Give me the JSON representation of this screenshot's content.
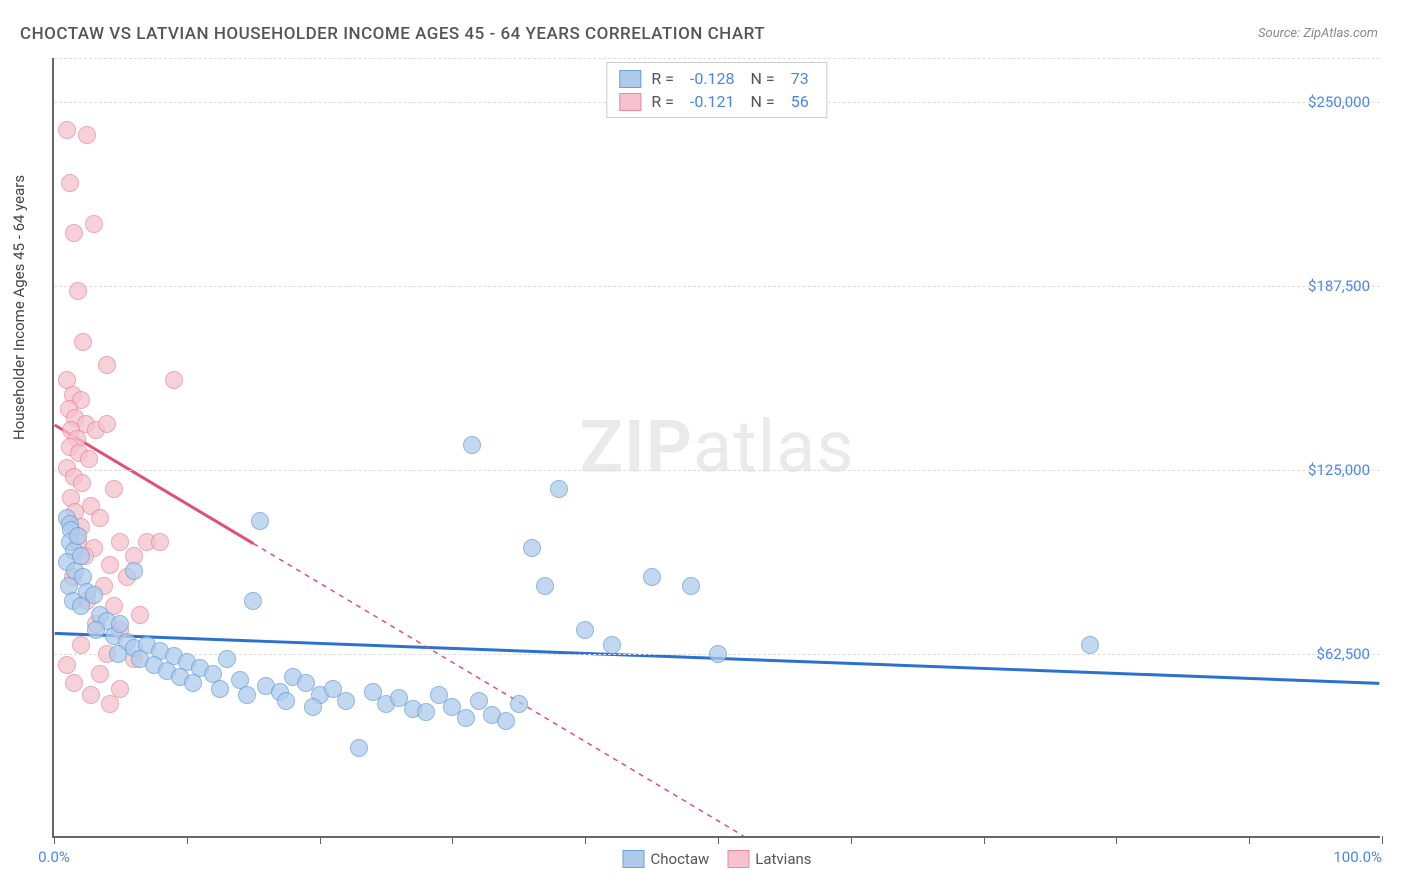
{
  "title": "CHOCTAW VS LATVIAN HOUSEHOLDER INCOME AGES 45 - 64 YEARS CORRELATION CHART",
  "source": "Source: ZipAtlas.com",
  "ylabel": "Householder Income Ages 45 - 64 years",
  "watermark_zip": "ZIP",
  "watermark_atlas": "atlas",
  "chart": {
    "type": "scatter",
    "xlim": [
      0,
      100
    ],
    "ylim": [
      0,
      265000
    ],
    "background_color": "#ffffff",
    "grid_color": "#dddddd",
    "axis_color": "#666666",
    "yticks": [
      {
        "value": 62500,
        "label": "$62,500"
      },
      {
        "value": 125000,
        "label": "$125,000"
      },
      {
        "value": 187500,
        "label": "$187,500"
      },
      {
        "value": 250000,
        "label": "$250,000"
      }
    ],
    "extra_gridlines_y": [
      265000
    ],
    "xticks": [
      0,
      10,
      20,
      30,
      40,
      50,
      60,
      70,
      80,
      90,
      100
    ],
    "xtick_labels": [
      {
        "value": 0,
        "label": "0.0%"
      },
      {
        "value": 100,
        "label": "100.0%",
        "align": "right"
      }
    ],
    "series": [
      {
        "name": "Choctaw",
        "color_fill": "#aecbeb",
        "color_stroke": "#6b9fd8",
        "line_color": "#2b71d0",
        "marker_size": 18,
        "fill_opacity": 0.75,
        "R": "-0.128",
        "N": "73",
        "regression": {
          "x1": 0,
          "y1": 69000,
          "x2": 100,
          "y2": 52000
        },
        "solid_until_x": 100,
        "points": [
          [
            1.0,
            108000
          ],
          [
            1.2,
            106000
          ],
          [
            1.3,
            104000
          ],
          [
            1.2,
            100000
          ],
          [
            1.5,
            97000
          ],
          [
            1.8,
            102000
          ],
          [
            1.0,
            93000
          ],
          [
            1.6,
            90000
          ],
          [
            2.0,
            95000
          ],
          [
            2.2,
            88000
          ],
          [
            1.1,
            85000
          ],
          [
            2.5,
            83000
          ],
          [
            1.4,
            80000
          ],
          [
            3.0,
            82000
          ],
          [
            2.0,
            78000
          ],
          [
            3.5,
            75000
          ],
          [
            4.0,
            73000
          ],
          [
            3.2,
            70000
          ],
          [
            4.5,
            68000
          ],
          [
            5.0,
            72000
          ],
          [
            5.5,
            66000
          ],
          [
            6.0,
            64000
          ],
          [
            4.8,
            62000
          ],
          [
            7.0,
            65000
          ],
          [
            6.5,
            60000
          ],
          [
            8.0,
            63000
          ],
          [
            7.5,
            58000
          ],
          [
            9.0,
            61000
          ],
          [
            8.5,
            56000
          ],
          [
            10.0,
            59000
          ],
          [
            9.5,
            54000
          ],
          [
            11.0,
            57000
          ],
          [
            10.5,
            52000
          ],
          [
            12.0,
            55000
          ],
          [
            13.0,
            60000
          ],
          [
            12.5,
            50000
          ],
          [
            14.0,
            53000
          ],
          [
            15.0,
            80000
          ],
          [
            14.5,
            48000
          ],
          [
            16.0,
            51000
          ],
          [
            15.5,
            107000
          ],
          [
            17.0,
            49000
          ],
          [
            18.0,
            54000
          ],
          [
            17.5,
            46000
          ],
          [
            19.0,
            52000
          ],
          [
            20.0,
            48000
          ],
          [
            19.5,
            44000
          ],
          [
            21.0,
            50000
          ],
          [
            22.0,
            46000
          ],
          [
            23.0,
            30000
          ],
          [
            24.0,
            49000
          ],
          [
            25.0,
            45000
          ],
          [
            26.0,
            47000
          ],
          [
            27.0,
            43000
          ],
          [
            28.0,
            42000
          ],
          [
            29.0,
            48000
          ],
          [
            30.0,
            44000
          ],
          [
            31.0,
            40000
          ],
          [
            32.0,
            46000
          ],
          [
            33.0,
            41000
          ],
          [
            31.5,
            133000
          ],
          [
            34.0,
            39000
          ],
          [
            35.0,
            45000
          ],
          [
            36.0,
            98000
          ],
          [
            37.0,
            85000
          ],
          [
            38.0,
            118000
          ],
          [
            40.0,
            70000
          ],
          [
            42.0,
            65000
          ],
          [
            45.0,
            88000
          ],
          [
            48.0,
            85000
          ],
          [
            50.0,
            62000
          ],
          [
            78.0,
            65000
          ],
          [
            6.0,
            90000
          ]
        ]
      },
      {
        "name": "Latvians",
        "color_fill": "#f5c2cd",
        "color_stroke": "#e88aa0",
        "line_color": "#e04f75",
        "marker_size": 18,
        "fill_opacity": 0.75,
        "R": "-0.121",
        "N": "56",
        "regression": {
          "x1": 0,
          "y1": 140000,
          "x2": 52,
          "y2": 0
        },
        "solid_until_x": 15,
        "points": [
          [
            1.0,
            240000
          ],
          [
            2.5,
            238000
          ],
          [
            1.2,
            222000
          ],
          [
            1.5,
            205000
          ],
          [
            3.0,
            208000
          ],
          [
            1.8,
            185000
          ],
          [
            2.2,
            168000
          ],
          [
            4.0,
            160000
          ],
          [
            1.0,
            155000
          ],
          [
            1.4,
            150000
          ],
          [
            2.0,
            148000
          ],
          [
            1.1,
            145000
          ],
          [
            1.6,
            142000
          ],
          [
            2.4,
            140000
          ],
          [
            1.3,
            138000
          ],
          [
            1.7,
            135000
          ],
          [
            3.2,
            138000
          ],
          [
            1.2,
            132000
          ],
          [
            1.9,
            130000
          ],
          [
            2.6,
            128000
          ],
          [
            1.0,
            125000
          ],
          [
            1.5,
            122000
          ],
          [
            4.5,
            118000
          ],
          [
            2.1,
            120000
          ],
          [
            1.3,
            115000
          ],
          [
            2.8,
            112000
          ],
          [
            1.6,
            110000
          ],
          [
            3.5,
            108000
          ],
          [
            9.0,
            155000
          ],
          [
            2.0,
            105000
          ],
          [
            4.0,
            140000
          ],
          [
            1.8,
            100000
          ],
          [
            3.0,
            98000
          ],
          [
            5.0,
            100000
          ],
          [
            2.3,
            95000
          ],
          [
            4.2,
            92000
          ],
          [
            6.0,
            95000
          ],
          [
            1.4,
            88000
          ],
          [
            3.8,
            85000
          ],
          [
            5.5,
            88000
          ],
          [
            2.5,
            80000
          ],
          [
            7.0,
            100000
          ],
          [
            4.5,
            78000
          ],
          [
            6.5,
            75000
          ],
          [
            3.2,
            72000
          ],
          [
            8.0,
            100000
          ],
          [
            5.0,
            70000
          ],
          [
            2.0,
            65000
          ],
          [
            4.0,
            62000
          ],
          [
            6.0,
            60000
          ],
          [
            3.5,
            55000
          ],
          [
            1.5,
            52000
          ],
          [
            5.0,
            50000
          ],
          [
            2.8,
            48000
          ],
          [
            4.2,
            45000
          ],
          [
            1.0,
            58000
          ]
        ]
      }
    ]
  },
  "legend_bottom": [
    {
      "label": "Choctaw",
      "fill": "#aecbeb",
      "stroke": "#6b9fd8"
    },
    {
      "label": "Latvians",
      "fill": "#f5c2cd",
      "stroke": "#e88aa0"
    }
  ],
  "legend_labels": {
    "R": "R =",
    "N": "N ="
  }
}
